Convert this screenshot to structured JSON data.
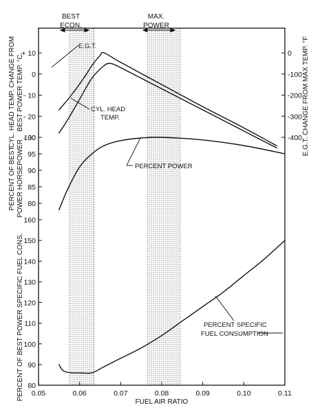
{
  "chart_data": {
    "type": "line",
    "x_axis": {
      "label": "FUEL AIR RATIO",
      "range": [
        0.05,
        0.11
      ],
      "ticks": [
        0.05,
        0.06,
        0.07,
        0.08,
        0.09,
        0.1,
        0.11
      ],
      "tick_labels": [
        "0.05",
        "0.06",
        "0.07",
        "0.08",
        "0.09",
        "0.10",
        "0.11"
      ]
    },
    "bands": [
      {
        "label_line1": "BEST",
        "label_line2": "ECON.",
        "x_range": [
          0.0575,
          0.0635
        ]
      },
      {
        "label_line1": "MAX.",
        "label_line2": "POWER",
        "x_range": [
          0.0765,
          0.0845
        ]
      }
    ],
    "panels": [
      {
        "name": "temperature",
        "y_left": {
          "label_line1": "CYL. HEAD TEMP. CHANGE FROM",
          "label_line2": "BEST POWER TEMP. °C.",
          "range": [
            -30,
            10
          ],
          "ticks": [
            10,
            0,
            -10,
            -20,
            -30
          ],
          "tick_labels": [
            "+ 10",
            "0",
            "- 10",
            "- 20",
            "- 30"
          ]
        },
        "y_right": {
          "label": "E.G.T. CHANGE FROM MAX TEMP. °F",
          "range": [
            -400,
            0
          ],
          "ticks": [
            0,
            -100,
            -200,
            -300,
            -400
          ],
          "tick_labels": [
            "0",
            "-100",
            "-200",
            "-300",
            "-400"
          ]
        },
        "series": [
          {
            "name": "E.G.T.",
            "axis": "right",
            "x": [
              0.055,
              0.058,
              0.061,
              0.063,
              0.065,
              0.066,
              0.07,
              0.08,
              0.09,
              0.1,
              0.108
            ],
            "y": [
              -270,
              -200,
              -120,
              -60,
              -12,
              0,
              -45,
              -150,
              -255,
              -355,
              -440
            ]
          },
          {
            "name": "CYL. HEAD TEMP.",
            "axis": "left",
            "x": [
              0.055,
              0.057,
              0.06,
              0.063,
              0.066,
              0.0675,
              0.069,
              0.07,
              0.08,
              0.09,
              0.1,
              0.108
            ],
            "y": [
              -28,
              -22,
              -12,
              -2,
              4,
              5,
              4,
              3,
              -7,
              -17,
              -27,
              -35
            ]
          }
        ],
        "annotations": [
          {
            "text": "E.G.T."
          },
          {
            "text_line1": "CYL. HEAD",
            "text_line2": "TEMP."
          }
        ]
      },
      {
        "name": "power",
        "y_left": {
          "label_line1": "PERCENT OF BEST",
          "label_line2": "POWER HORSEPOWER",
          "range": [
            76,
            100
          ],
          "ticks": [
            100,
            95,
            90,
            85,
            80
          ],
          "tick_labels": [
            "100",
            "95",
            "90",
            "85",
            "80"
          ]
        },
        "series": [
          {
            "name": "PERCENT POWER",
            "x": [
              0.055,
              0.057,
              0.06,
              0.063,
              0.066,
              0.07,
              0.075,
              0.08,
              0.09,
              0.1,
              0.11
            ],
            "y": [
              78,
              84,
              91,
              95,
              97.5,
              99,
              99.8,
              100,
              99.2,
              97.5,
              95
            ]
          }
        ],
        "annotations": [
          {
            "text": "PERCENT POWER"
          }
        ]
      },
      {
        "name": "fuel_consumption",
        "y_left": {
          "label": "PERCENT OF BEST POWER SPECIFIC FUEL CONS.",
          "range": [
            80,
            160
          ],
          "ticks": [
            160,
            150,
            140,
            130,
            120,
            110,
            100,
            90,
            80
          ],
          "tick_labels": [
            "160",
            "150",
            "140",
            "130",
            "120",
            "110",
            "100",
            "90",
            "80"
          ]
        },
        "series": [
          {
            "name": "PERCENT SPECIFIC FUEL CONSUMPTION",
            "x": [
              0.055,
              0.056,
              0.058,
              0.06,
              0.063,
              0.066,
              0.07,
              0.075,
              0.08,
              0.085,
              0.09,
              0.095,
              0.1,
              0.105,
              0.11
            ],
            "y": [
              90,
              87,
              86,
              86,
              86,
              89,
              93,
              98,
              104,
              111,
              118,
              125,
              133,
              141,
              150
            ]
          }
        ],
        "annotations": [
          {
            "text_line1": "PERCENT SPECIFIC",
            "text_line2": "FUEL CONSUMPTION"
          }
        ]
      }
    ]
  }
}
